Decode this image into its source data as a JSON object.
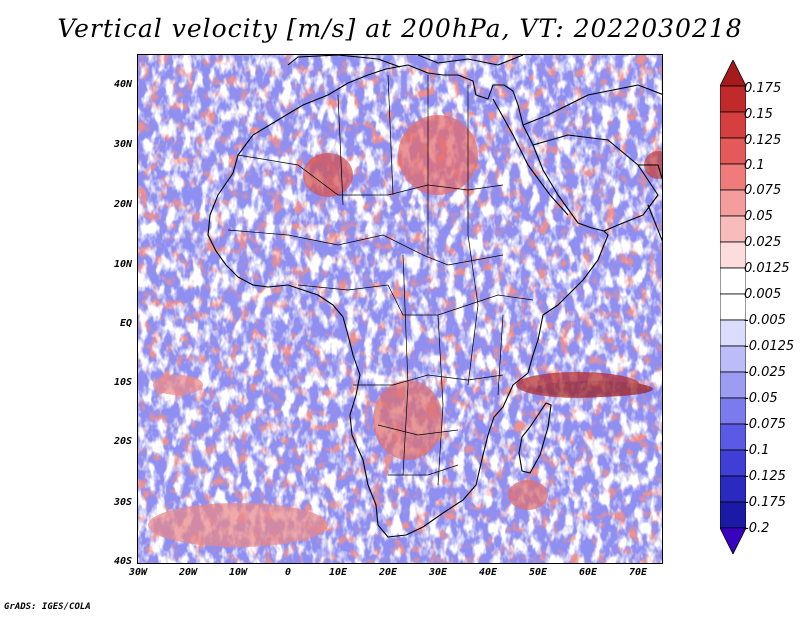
{
  "title": "Vertical velocity [m/s] at 200hPa, VT: 2022030218",
  "credit": "GrADS: IGES/COLA",
  "map": {
    "lat_labels": [
      "40N",
      "30N",
      "20N",
      "10N",
      "EQ",
      "10S",
      "20S",
      "30S",
      "40S"
    ],
    "lat_values": [
      40,
      30,
      20,
      10,
      0,
      -10,
      -20,
      -30,
      -40
    ],
    "lon_labels": [
      "30W",
      "20W",
      "10W",
      "0",
      "10E",
      "20E",
      "30E",
      "40E",
      "50E",
      "60E",
      "70E"
    ],
    "lon_values": [
      -30,
      -20,
      -10,
      0,
      10,
      20,
      30,
      40,
      50,
      60,
      70
    ],
    "extent": {
      "lon_min": -30,
      "lon_max": 75,
      "lat_min": -40,
      "lat_max": 45
    }
  },
  "colorbar": {
    "labels": [
      "0.175",
      "0.15",
      "0.125",
      "0.1",
      "0.075",
      "0.05",
      "0.025",
      "0.0125",
      "0.005",
      "-0.005",
      "-0.0125",
      "-0.025",
      "-0.05",
      "-0.075",
      "-0.1",
      "-0.125",
      "-0.175",
      "-0.2"
    ],
    "colors": [
      "#a51a1a",
      "#c02a2a",
      "#d53f3f",
      "#e45a5a",
      "#ef7b7b",
      "#f59c9c",
      "#f9bcbc",
      "#fcdcdc",
      "#ffffff",
      "#ffffff",
      "#dcdcff",
      "#bcbcf9",
      "#9c9cf3",
      "#7b7bee",
      "#5a5ae4",
      "#3f3fd5",
      "#2a2ac0",
      "#1a1aa5",
      "#3a00c0"
    ]
  }
}
